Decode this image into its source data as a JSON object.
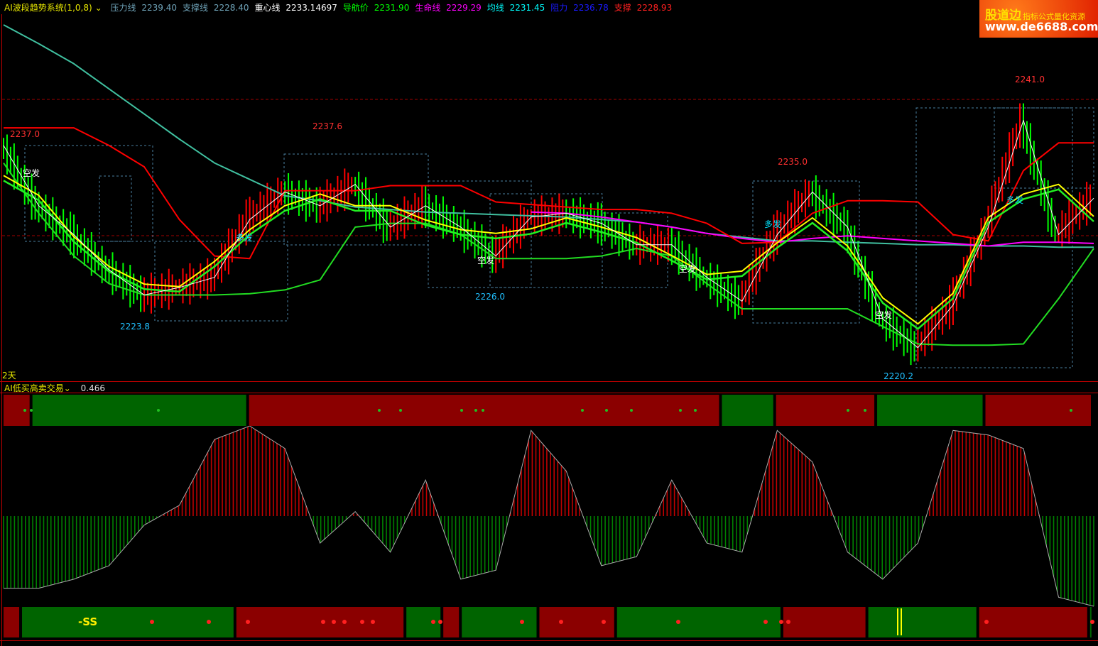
{
  "header": {
    "indicator_name": "AI波段趋势系统(1,0,8)",
    "items": [
      {
        "label": "压力线",
        "value": "2239.40",
        "color": "#6fa3b8"
      },
      {
        "label": "支撑线",
        "value": "2228.40",
        "color": "#6fa3b8"
      },
      {
        "label": "重心线",
        "value": "2233.14697",
        "color": "#ffffff"
      },
      {
        "label": "导航价",
        "value": "2231.90",
        "color": "#00ff00"
      },
      {
        "label": "生命线",
        "value": "2229.29",
        "color": "#ff00ff"
      },
      {
        "label": "均线",
        "value": "2231.45",
        "color": "#00ffff"
      },
      {
        "label": "阻力",
        "value": "2236.78",
        "color": "#1a1aff"
      },
      {
        "label": "支撑",
        "value": "2228.93",
        "color": "#ff2020"
      }
    ]
  },
  "logo": {
    "brand": "股道边",
    "tagline": "指标公式量化资源",
    "site": "www.de6688.com"
  },
  "period_label": "2天",
  "sub_indicator": {
    "name": "AI低买高卖交易",
    "value": "0.466",
    "signal_text": "-SS"
  },
  "price_labels": [
    "2237.0",
    "2237.6",
    "2223.8",
    "2226.0",
    "2235.0",
    "2241.0",
    "2220.2"
  ],
  "signal_labels": [
    {
      "text": "空发",
      "color": "#ffffff"
    },
    {
      "text": "多发",
      "color": "#00e5ff"
    },
    {
      "text": "空发",
      "color": "#ffffff"
    },
    {
      "text": "空发",
      "color": "#ffffff"
    },
    {
      "text": "多发",
      "color": "#00e5ff"
    },
    {
      "text": "空发",
      "color": "#ffffff"
    },
    {
      "text": "多发",
      "color": "#00e5ff"
    }
  ],
  "colors": {
    "up": "#ff0000",
    "down": "#00ff00",
    "buy_zone": "#006400",
    "sell_zone": "#8b0000",
    "ma": "#40c0a0"
  },
  "chart_data": [
    {
      "type": "line",
      "title": "AI波段趋势系统(1,0,8)",
      "ylim": [
        2218,
        2249
      ],
      "grid": false,
      "series": [
        {
          "name": "收盘",
          "color": "#ffffff",
          "values": [
            2237.9,
            2233.1,
            2230.8,
            2228.0,
            2226.0,
            2226.6,
            2227.4,
            2232.0,
            2234.2,
            2233.1,
            2234.8,
            2231.4,
            2233.1,
            2231.4,
            2229.1,
            2232.2,
            2232.5,
            2231.7,
            2230.0,
            2230.0,
            2227.4,
            2225.5,
            2230.8,
            2234.2,
            2231.4,
            2224.1,
            2221.8,
            2225.2,
            2231.4,
            2239.9,
            2230.8,
            2233.7
          ]
        },
        {
          "name": "均线",
          "color": "#40c0a0",
          "values": [
            2247.5,
            2246.0,
            2244.4,
            2242.4,
            2240.4,
            2238.4,
            2236.5,
            2235.2,
            2233.9,
            2233.5,
            2233.0,
            2232.8,
            2232.6,
            2232.5,
            2232.4,
            2232.3,
            2232.2,
            2232.0,
            2231.8,
            2231.4,
            2230.9,
            2230.6,
            2230.3,
            2230.3,
            2230.2,
            2230.1,
            2230.0,
            2230.0,
            2229.9,
            2229.9,
            2229.8,
            2229.8
          ]
        },
        {
          "name": "阻力",
          "color": "#ff0000",
          "values": [
            2239.3,
            2239.3,
            2239.3,
            2237.9,
            2236.2,
            2232.0,
            2229.1,
            2228.9,
            2234.3,
            2234.3,
            2234.3,
            2234.7,
            2234.7,
            2234.7,
            2233.4,
            2233.2,
            2233.0,
            2232.8,
            2232.8,
            2232.5,
            2231.7,
            2230.1,
            2230.2,
            2232.5,
            2233.5,
            2233.5,
            2233.4,
            2230.8,
            2230.3,
            2235.9,
            2238.1,
            2238.1
          ]
        },
        {
          "name": "支撑",
          "color": "#22dd22",
          "values": [
            2236.5,
            2232.5,
            2229.1,
            2226.9,
            2226.0,
            2226.0,
            2226.0,
            2226.1,
            2226.4,
            2227.2,
            2231.4,
            2231.7,
            2231.7,
            2230.8,
            2228.9,
            2228.9,
            2228.9,
            2229.1,
            2229.7,
            2229.1,
            2226.9,
            2224.9,
            2224.9,
            2224.9,
            2224.9,
            2223.5,
            2222.1,
            2222.0,
            2222.0,
            2222.1,
            2225.7,
            2229.7
          ]
        },
        {
          "name": "生命线",
          "color": "#ff00ff",
          "values": [
            null,
            null,
            null,
            null,
            null,
            null,
            null,
            null,
            null,
            null,
            null,
            null,
            null,
            null,
            null,
            2232.6,
            2232.5,
            2232.2,
            2231.8,
            2231.4,
            2230.9,
            2230.5,
            2230.2,
            2230.5,
            2230.7,
            2230.5,
            2230.3,
            2230.1,
            2229.9,
            2230.2,
            2230.2,
            2230.1
          ]
        }
      ]
    },
    {
      "type": "bar",
      "title": "AI低买高卖交易",
      "values": [
        -80,
        -80,
        -70,
        -55,
        -10,
        12,
        85,
        100,
        75,
        -30,
        5,
        -40,
        40,
        -70,
        -60,
        95,
        50,
        -55,
        -45,
        40,
        -30,
        -40,
        95,
        60,
        -40,
        -70,
        -30,
        95,
        90,
        75,
        -90,
        -100
      ],
      "zones_top": [
        {
          "state": "sell",
          "bars": 8
        },
        {
          "state": "buy",
          "bars": 60
        },
        {
          "state": "sell",
          "bars": 131
        },
        {
          "state": "buy",
          "bars": 15
        },
        {
          "state": "sell",
          "bars": 28
        },
        {
          "state": "buy",
          "bars": 30
        },
        {
          "state": "sell",
          "bars": 30
        }
      ],
      "zones_bottom": [
        {
          "state": "sell",
          "bars": 5
        },
        {
          "state": "buy",
          "bars": 58
        },
        {
          "state": "sell",
          "bars": 46
        },
        {
          "state": "buy",
          "bars": 10
        },
        {
          "state": "sell",
          "bars": 5
        },
        {
          "state": "buy",
          "bars": 21
        },
        {
          "state": "sell",
          "bars": 21
        },
        {
          "state": "buy",
          "bars": 45
        },
        {
          "state": "sell",
          "bars": 23
        },
        {
          "state": "buy",
          "bars": 30
        },
        {
          "state": "sell",
          "bars": 30
        },
        {
          "state": "buy",
          "bars": 1
        }
      ]
    }
  ]
}
